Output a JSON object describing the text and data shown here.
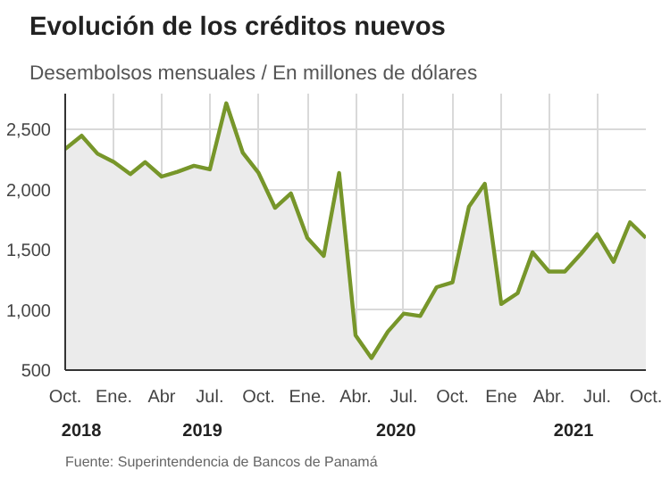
{
  "chart_data": {
    "type": "area",
    "title": "Evolución de los créditos nuevos",
    "subtitle": "Desembolsos mensuales / En millones de dólares",
    "annotations": [
      "2018",
      "2019",
      "2020",
      "2021",
      "Fuente: Superintendencia de Bancos de Panamá"
    ],
    "x": [
      "2018-10",
      "2018-11",
      "2018-12",
      "2019-01",
      "2019-02",
      "2019-03",
      "2019-04",
      "2019-05",
      "2019-06",
      "2019-07",
      "2019-08",
      "2019-09",
      "2019-10",
      "2019-11",
      "2019-12",
      "2020-01",
      "2020-02",
      "2020-03",
      "2020-04",
      "2020-05",
      "2020-06",
      "2020-07",
      "2020-08",
      "2020-09",
      "2020-10",
      "2020-11",
      "2020-12",
      "2021-01",
      "2021-02",
      "2021-03",
      "2021-04",
      "2021-05",
      "2021-06",
      "2021-07",
      "2021-08",
      "2021-09",
      "2021-10"
    ],
    "series": [
      {
        "color": "#77962a",
        "values": [
          2340,
          2450,
          2300,
          2230,
          2130,
          2230,
          2110,
          2150,
          2200,
          2170,
          2720,
          2310,
          2140,
          1850,
          1970,
          1600,
          1450,
          2140,
          790,
          600,
          820,
          970,
          950,
          1190,
          1230,
          1860,
          2050,
          1050,
          1140,
          1480,
          1320,
          1320,
          1470,
          1630,
          1400,
          1730,
          1600
        ]
      }
    ],
    "xlim": [
      "2018-10",
      "2021-10"
    ],
    "xticks": [
      {
        "value": "2018-10",
        "label": "Oct."
      },
      {
        "value": "2019-01",
        "label": "Ene."
      },
      {
        "value": "2019-04",
        "label": "Abr"
      },
      {
        "value": "2019-07",
        "label": "Jul."
      },
      {
        "value": "2019-10",
        "label": "Oct."
      },
      {
        "value": "2020-01",
        "label": "Ene."
      },
      {
        "value": "2020-04",
        "label": "Abr."
      },
      {
        "value": "2020-07",
        "label": "Jul."
      },
      {
        "value": "2020-10",
        "label": "Oct."
      },
      {
        "value": "2021-01",
        "label": "Ene"
      },
      {
        "value": "2021-04",
        "label": "Abr."
      },
      {
        "value": "2021-07",
        "label": "Jul."
      },
      {
        "value": "2021-10",
        "label": "Oct."
      }
    ],
    "ylim": [
      500,
      2800
    ],
    "yticks": [
      500,
      {
        "value": 1000,
        "label": "1,000"
      },
      {
        "value": 1500,
        "label": "1,500"
      },
      {
        "value": 2000,
        "label": "2,000"
      },
      {
        "value": 2500,
        "label": "2,500"
      }
    ],
    "grid": true,
    "marker": "none",
    "line_style": "solid"
  }
}
